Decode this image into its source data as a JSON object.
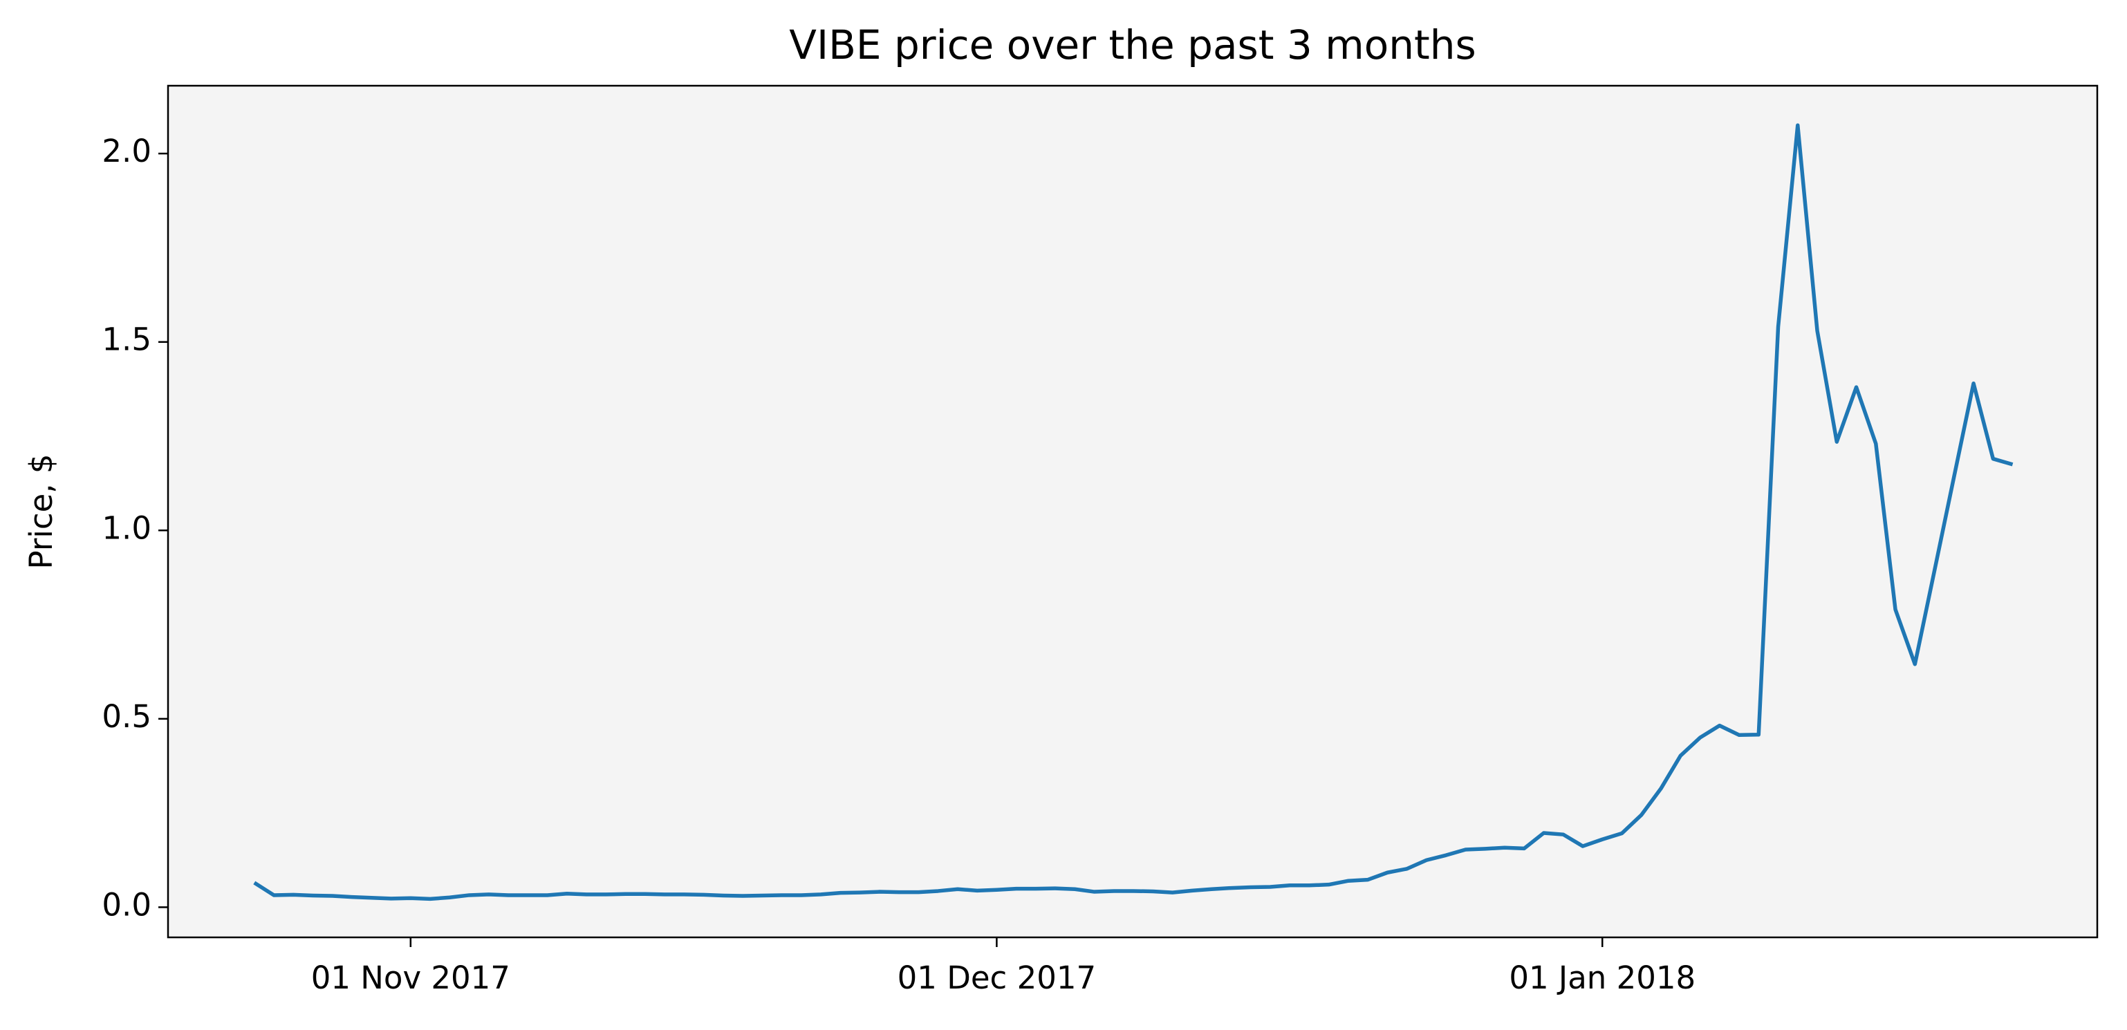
{
  "chart_data": {
    "type": "line",
    "title": "VIBE price over the past 3 months",
    "y_label": "Price, $",
    "x": [
      "2017-10-24",
      "2017-10-25",
      "2017-10-26",
      "2017-10-27",
      "2017-10-28",
      "2017-10-29",
      "2017-10-30",
      "2017-10-31",
      "2017-11-01",
      "2017-11-02",
      "2017-11-03",
      "2017-11-04",
      "2017-11-05",
      "2017-11-06",
      "2017-11-07",
      "2017-11-08",
      "2017-11-09",
      "2017-11-10",
      "2017-11-11",
      "2017-11-12",
      "2017-11-13",
      "2017-11-14",
      "2017-11-15",
      "2017-11-16",
      "2017-11-17",
      "2017-11-18",
      "2017-11-19",
      "2017-11-20",
      "2017-11-21",
      "2017-11-22",
      "2017-11-23",
      "2017-11-24",
      "2017-11-25",
      "2017-11-26",
      "2017-11-27",
      "2017-11-28",
      "2017-11-29",
      "2017-11-30",
      "2017-12-01",
      "2017-12-02",
      "2017-12-03",
      "2017-12-04",
      "2017-12-05",
      "2017-12-06",
      "2017-12-07",
      "2017-12-08",
      "2017-12-09",
      "2017-12-10",
      "2017-12-11",
      "2017-12-12",
      "2017-12-13",
      "2017-12-14",
      "2017-12-15",
      "2017-12-16",
      "2017-12-17",
      "2017-12-18",
      "2017-12-19",
      "2017-12-20",
      "2017-12-21",
      "2017-12-22",
      "2017-12-23",
      "2017-12-24",
      "2017-12-25",
      "2017-12-26",
      "2017-12-27",
      "2017-12-28",
      "2017-12-29",
      "2017-12-30",
      "2017-12-31",
      "2018-01-01",
      "2018-01-02",
      "2018-01-03",
      "2018-01-04",
      "2018-01-05",
      "2018-01-06",
      "2018-01-07",
      "2018-01-08",
      "2018-01-09",
      "2018-01-10",
      "2018-01-11",
      "2018-01-12",
      "2018-01-13",
      "2018-01-14",
      "2018-01-15",
      "2018-01-16",
      "2018-01-17",
      "2018-01-18",
      "2018-01-19",
      "2018-01-20",
      "2018-01-21",
      "2018-01-22"
    ],
    "series": [
      {
        "name": "VIBE",
        "color": "#1f77b4",
        "values": [
          0.065,
          0.032,
          0.033,
          0.031,
          0.03,
          0.027,
          0.025,
          0.023,
          0.024,
          0.022,
          0.026,
          0.032,
          0.034,
          0.032,
          0.032,
          0.032,
          0.036,
          0.034,
          0.034,
          0.035,
          0.035,
          0.034,
          0.034,
          0.033,
          0.031,
          0.03,
          0.031,
          0.032,
          0.032,
          0.034,
          0.038,
          0.039,
          0.041,
          0.04,
          0.04,
          0.043,
          0.048,
          0.044,
          0.046,
          0.049,
          0.049,
          0.05,
          0.048,
          0.041,
          0.043,
          0.043,
          0.042,
          0.039,
          0.044,
          0.048,
          0.051,
          0.053,
          0.054,
          0.058,
          0.058,
          0.06,
          0.07,
          0.073,
          0.092,
          0.102,
          0.125,
          0.138,
          0.153,
          0.155,
          0.158,
          0.156,
          0.197,
          0.193,
          0.162,
          0.18,
          0.196,
          0.245,
          0.315,
          0.402,
          0.45,
          0.482,
          0.457,
          0.458,
          1.54,
          2.075,
          1.53,
          1.235,
          1.38,
          1.23,
          0.79,
          0.645,
          0.893,
          1.142,
          1.39,
          1.19,
          1.175
        ]
      }
    ],
    "xlim": [
      "2017-10-19T14:00",
      "2018-01-26T08:00"
    ],
    "xticks": [
      {
        "value": "2017-11-01",
        "label": "01 Nov 2017"
      },
      {
        "value": "2017-12-01",
        "label": "01 Dec 2017"
      },
      {
        "value": "2018-01-01",
        "label": "01 Jan 2018"
      }
    ],
    "ylim": [
      -0.08,
      2.18
    ],
    "yticks": [
      {
        "value": 0,
        "label": "0.0"
      },
      0.5,
      {
        "value": 1,
        "label": "1.0"
      },
      1.5,
      {
        "value": 2,
        "label": "2.0"
      }
    ],
    "grid": false,
    "background": "#f4f4f4"
  }
}
